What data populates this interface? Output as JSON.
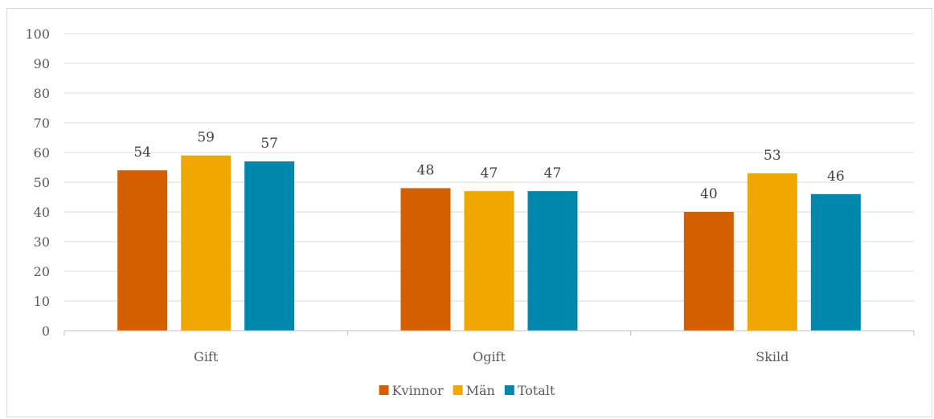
{
  "chart_data": {
    "type": "bar",
    "categories": [
      "Gift",
      "Ogift",
      "Skild"
    ],
    "series": [
      {
        "name": "Kvinnor",
        "values": [
          54,
          48,
          40
        ],
        "color": "#d45f00"
      },
      {
        "name": "Män",
        "values": [
          59,
          47,
          53
        ],
        "color": "#f0a800"
      },
      {
        "name": "Totalt",
        "values": [
          57,
          47,
          46
        ],
        "color": "#0087ad"
      }
    ],
    "ylim": [
      0,
      100
    ],
    "yticks": [
      0,
      10,
      20,
      30,
      40,
      50,
      60,
      70,
      80,
      90,
      100
    ],
    "grid": true,
    "legend_position": "bottom",
    "data_labels": true
  }
}
